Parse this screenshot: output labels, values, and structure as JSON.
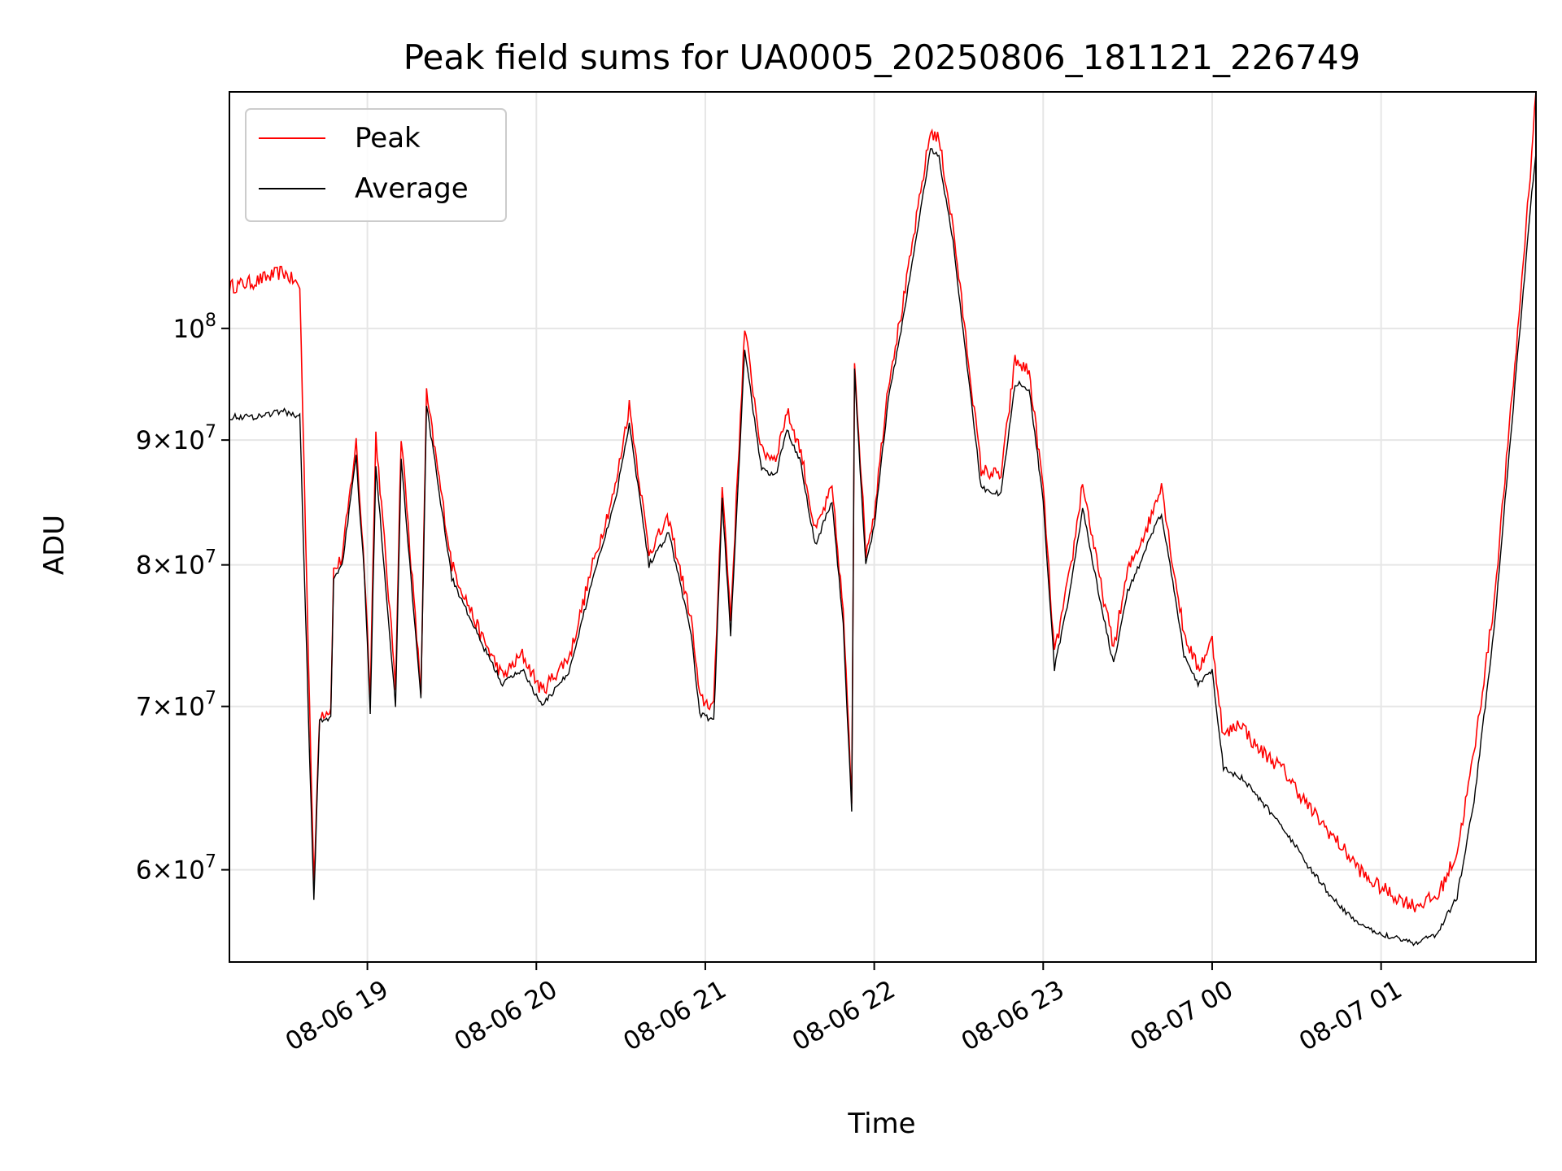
{
  "chart_data": {
    "type": "line",
    "title": "Peak field sums for UA0005_20250806_181121_226749",
    "xlabel": "Time",
    "ylabel": "ADU",
    "y_scale": "log",
    "grid": true,
    "legend_position": "top-left",
    "xlim": [
      "2025-08-06 18:11",
      "2025-08-07 01:55"
    ],
    "ylim": [
      55000000,
      125000000
    ],
    "x_ticks": [
      {
        "label": "08-06 19",
        "t": "2025-08-06 19:00"
      },
      {
        "label": "08-06 20",
        "t": "2025-08-06 20:00"
      },
      {
        "label": "08-06 21",
        "t": "2025-08-06 21:00"
      },
      {
        "label": "08-06 22",
        "t": "2025-08-06 22:00"
      },
      {
        "label": "08-06 23",
        "t": "2025-08-06 23:00"
      },
      {
        "label": "08-07 00",
        "t": "2025-08-07 00:00"
      },
      {
        "label": "08-07 01",
        "t": "2025-08-07 01:00"
      }
    ],
    "y_ticks": [
      {
        "mant": "6",
        "value": 60000000
      },
      {
        "mant": "7",
        "value": 70000000
      },
      {
        "mant": "8",
        "value": 80000000
      },
      {
        "mant": "9",
        "value": 90000000
      },
      {
        "mant": "",
        "value": 100000000
      }
    ],
    "series": [
      {
        "name": "Peak",
        "color": "#ff0000",
        "points": [
          [
            "2025-08-06 18:11",
            104000000
          ],
          [
            "2025-08-06 18:20",
            104500000
          ],
          [
            "2025-08-06 18:30",
            105500000
          ],
          [
            "2025-08-06 18:36",
            104000000
          ],
          [
            "2025-08-06 18:41",
            59000000
          ],
          [
            "2025-08-06 18:43",
            69500000
          ],
          [
            "2025-08-06 18:47",
            69800000
          ],
          [
            "2025-08-06 18:48",
            79500000
          ],
          [
            "2025-08-06 18:51",
            80500000
          ],
          [
            "2025-08-06 18:56",
            89800000
          ],
          [
            "2025-08-06 18:59",
            79500000
          ],
          [
            "2025-08-06 19:01",
            71000000
          ],
          [
            "2025-08-06 19:03",
            90500000
          ],
          [
            "2025-08-06 19:10",
            71500000
          ],
          [
            "2025-08-06 19:12",
            90500000
          ],
          [
            "2025-08-06 19:19",
            71000000
          ],
          [
            "2025-08-06 19:21",
            94000000
          ],
          [
            "2025-08-06 19:30",
            80000000
          ],
          [
            "2025-08-06 19:40",
            75000000
          ],
          [
            "2025-08-06 19:48",
            72000000
          ],
          [
            "2025-08-06 19:55",
            73500000
          ],
          [
            "2025-08-06 20:02",
            71000000
          ],
          [
            "2025-08-06 20:12",
            73500000
          ],
          [
            "2025-08-06 20:20",
            80000000
          ],
          [
            "2025-08-06 20:28",
            86000000
          ],
          [
            "2025-08-06 20:33",
            93000000
          ],
          [
            "2025-08-06 20:40",
            81000000
          ],
          [
            "2025-08-06 20:47",
            83500000
          ],
          [
            "2025-08-06 20:55",
            76000000
          ],
          [
            "2025-08-06 20:58",
            70500000
          ],
          [
            "2025-08-06 21:03",
            70000000
          ],
          [
            "2025-08-06 21:06",
            86500000
          ],
          [
            "2025-08-06 21:09",
            76000000
          ],
          [
            "2025-08-06 21:14",
            100000000
          ],
          [
            "2025-08-06 21:20",
            89000000
          ],
          [
            "2025-08-06 21:25",
            88500000
          ],
          [
            "2025-08-06 21:29",
            92500000
          ],
          [
            "2025-08-06 21:34",
            89000000
          ],
          [
            "2025-08-06 21:39",
            82500000
          ],
          [
            "2025-08-06 21:45",
            86000000
          ],
          [
            "2025-08-06 21:49",
            76500000
          ],
          [
            "2025-08-06 21:52",
            64000000
          ],
          [
            "2025-08-06 21:53",
            97000000
          ],
          [
            "2025-08-06 21:57",
            81000000
          ],
          [
            "2025-08-06 22:00",
            84000000
          ],
          [
            "2025-08-06 22:05",
            95000000
          ],
          [
            "2025-08-06 22:10",
            102000000
          ],
          [
            "2025-08-06 22:20",
            120500000
          ],
          [
            "2025-08-06 22:23",
            119500000
          ],
          [
            "2025-08-06 22:28",
            110000000
          ],
          [
            "2025-08-06 22:33",
            98000000
          ],
          [
            "2025-08-06 22:38",
            87500000
          ],
          [
            "2025-08-06 22:45",
            87000000
          ],
          [
            "2025-08-06 22:50",
            97000000
          ],
          [
            "2025-08-06 22:55",
            96000000
          ],
          [
            "2025-08-06 23:00",
            86000000
          ],
          [
            "2025-08-06 23:04",
            73500000
          ],
          [
            "2025-08-06 23:10",
            80000000
          ],
          [
            "2025-08-06 23:14",
            86500000
          ],
          [
            "2025-08-06 23:20",
            79000000
          ],
          [
            "2025-08-06 23:25",
            74000000
          ],
          [
            "2025-08-06 23:30",
            79500000
          ],
          [
            "2025-08-06 23:38",
            83500000
          ],
          [
            "2025-08-06 23:42",
            86500000
          ],
          [
            "2025-08-06 23:45",
            81500000
          ],
          [
            "2025-08-06 23:50",
            75000000
          ],
          [
            "2025-08-06 23:55",
            72500000
          ],
          [
            "2025-08-07 00:00",
            74500000
          ],
          [
            "2025-08-07 00:04",
            68000000
          ],
          [
            "2025-08-07 00:10",
            69000000
          ],
          [
            "2025-08-07 00:15",
            67500000
          ],
          [
            "2025-08-07 00:25",
            66000000
          ],
          [
            "2025-08-07 00:35",
            63500000
          ],
          [
            "2025-08-07 00:45",
            61500000
          ],
          [
            "2025-08-07 00:55",
            59500000
          ],
          [
            "2025-08-07 01:05",
            58500000
          ],
          [
            "2025-08-07 01:12",
            58000000
          ],
          [
            "2025-08-07 01:20",
            58500000
          ],
          [
            "2025-08-07 01:27",
            61000000
          ],
          [
            "2025-08-07 01:33",
            67000000
          ],
          [
            "2025-08-07 01:40",
            77000000
          ],
          [
            "2025-08-07 01:48",
            98000000
          ],
          [
            "2025-08-07 01:53",
            116000000
          ],
          [
            "2025-08-07 01:55",
            125000000
          ]
        ]
      },
      {
        "name": "Average",
        "color": "#000000",
        "points": [
          [
            "2025-08-06 18:11",
            92000000
          ],
          [
            "2025-08-06 18:20",
            92000000
          ],
          [
            "2025-08-06 18:30",
            92500000
          ],
          [
            "2025-08-06 18:36",
            92000000
          ],
          [
            "2025-08-06 18:41",
            58200000
          ],
          [
            "2025-08-06 18:43",
            69000000
          ],
          [
            "2025-08-06 18:47",
            69200000
          ],
          [
            "2025-08-06 18:48",
            79000000
          ],
          [
            "2025-08-06 18:51",
            80000000
          ],
          [
            "2025-08-06 18:56",
            88500000
          ],
          [
            "2025-08-06 18:59",
            79000000
          ],
          [
            "2025-08-06 19:01",
            69500000
          ],
          [
            "2025-08-06 19:03",
            88000000
          ],
          [
            "2025-08-06 19:10",
            70000000
          ],
          [
            "2025-08-06 19:12",
            88500000
          ],
          [
            "2025-08-06 19:19",
            70500000
          ],
          [
            "2025-08-06 19:21",
            93000000
          ],
          [
            "2025-08-06 19:30",
            79000000
          ],
          [
            "2025-08-06 19:40",
            74500000
          ],
          [
            "2025-08-06 19:48",
            71500000
          ],
          [
            "2025-08-06 19:55",
            72500000
          ],
          [
            "2025-08-06 20:02",
            70000000
          ],
          [
            "2025-08-06 20:12",
            72500000
          ],
          [
            "2025-08-06 20:20",
            79000000
          ],
          [
            "2025-08-06 20:28",
            85000000
          ],
          [
            "2025-08-06 20:33",
            91500000
          ],
          [
            "2025-08-06 20:40",
            80000000
          ],
          [
            "2025-08-06 20:47",
            82500000
          ],
          [
            "2025-08-06 20:55",
            75000000
          ],
          [
            "2025-08-06 20:58",
            69500000
          ],
          [
            "2025-08-06 21:03",
            69000000
          ],
          [
            "2025-08-06 21:06",
            85000000
          ],
          [
            "2025-08-06 21:09",
            75000000
          ],
          [
            "2025-08-06 21:14",
            98000000
          ],
          [
            "2025-08-06 21:20",
            87500000
          ],
          [
            "2025-08-06 21:25",
            87000000
          ],
          [
            "2025-08-06 21:29",
            91000000
          ],
          [
            "2025-08-06 21:34",
            88000000
          ],
          [
            "2025-08-06 21:39",
            81500000
          ],
          [
            "2025-08-06 21:45",
            85000000
          ],
          [
            "2025-08-06 21:49",
            75500000
          ],
          [
            "2025-08-06 21:52",
            63500000
          ],
          [
            "2025-08-06 21:53",
            96000000
          ],
          [
            "2025-08-06 21:57",
            80000000
          ],
          [
            "2025-08-06 22:00",
            83000000
          ],
          [
            "2025-08-06 22:05",
            93500000
          ],
          [
            "2025-08-06 22:10",
            100500000
          ],
          [
            "2025-08-06 22:20",
            118500000
          ],
          [
            "2025-08-06 22:23",
            117500000
          ],
          [
            "2025-08-06 22:28",
            108500000
          ],
          [
            "2025-08-06 22:33",
            96500000
          ],
          [
            "2025-08-06 22:38",
            86000000
          ],
          [
            "2025-08-06 22:45",
            85500000
          ],
          [
            "2025-08-06 22:50",
            95000000
          ],
          [
            "2025-08-06 22:55",
            94500000
          ],
          [
            "2025-08-06 23:00",
            85000000
          ],
          [
            "2025-08-06 23:04",
            72500000
          ],
          [
            "2025-08-06 23:10",
            78500000
          ],
          [
            "2025-08-06 23:14",
            84500000
          ],
          [
            "2025-08-06 23:20",
            77500000
          ],
          [
            "2025-08-06 23:25",
            72800000
          ],
          [
            "2025-08-06 23:30",
            78000000
          ],
          [
            "2025-08-06 23:38",
            82000000
          ],
          [
            "2025-08-06 23:42",
            84000000
          ],
          [
            "2025-08-06 23:45",
            80000000
          ],
          [
            "2025-08-06 23:50",
            73500000
          ],
          [
            "2025-08-06 23:55",
            71500000
          ],
          [
            "2025-08-07 00:00",
            72500000
          ],
          [
            "2025-08-07 00:04",
            66000000
          ],
          [
            "2025-08-07 00:10",
            65500000
          ],
          [
            "2025-08-07 00:15",
            64500000
          ],
          [
            "2025-08-07 00:25",
            62500000
          ],
          [
            "2025-08-07 00:35",
            60000000
          ],
          [
            "2025-08-07 00:45",
            58000000
          ],
          [
            "2025-08-07 00:55",
            56700000
          ],
          [
            "2025-08-07 01:05",
            56300000
          ],
          [
            "2025-08-07 01:12",
            56000000
          ],
          [
            "2025-08-07 01:20",
            56500000
          ],
          [
            "2025-08-07 01:27",
            58500000
          ],
          [
            "2025-08-07 01:33",
            64000000
          ],
          [
            "2025-08-07 01:40",
            75000000
          ],
          [
            "2025-08-07 01:48",
            96000000
          ],
          [
            "2025-08-07 01:53",
            112000000
          ],
          [
            "2025-08-07 01:55",
            118000000
          ]
        ]
      }
    ]
  }
}
